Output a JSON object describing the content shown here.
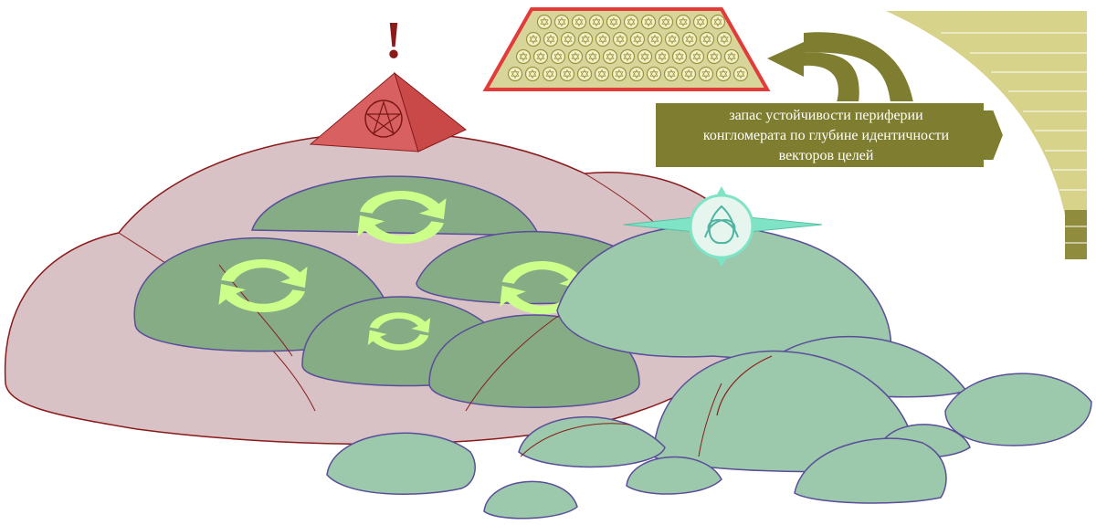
{
  "callout": {
    "lines": [
      "запас устойчивости периферии",
      "конгломерата по глубине идентичности",
      "векторов целей"
    ]
  },
  "marks": {
    "warning": "!"
  },
  "icons": {
    "pyramid": "pentagram-pyramid-icon",
    "compass": "triquetra-compass-icon",
    "cycle": "cycle-arrows-icon",
    "curved_arrow": "curved-arrow-icon",
    "hex_grid": "star-grid-trapezoid",
    "scale": "quarter-circle-scale"
  },
  "colors": {
    "pink_mass": "#d8c2c6",
    "pink_outline": "#8a1b1b",
    "dark_green_dome": "#85ac85",
    "light_green_dome": "#9cc8ac",
    "dome_outline": "#5a4d9a",
    "cycle_arrow": "#ccff8a",
    "pyramid": "#d96060",
    "warning": "#8b1a1a",
    "callout_fill": "#7f7d30",
    "scale_fill": "#d7d38a",
    "scale_dark": "#8f8d3d",
    "grid_fill": "#d8d59a",
    "grid_border": "#e33a3a",
    "compass": "#7fe3c6"
  }
}
